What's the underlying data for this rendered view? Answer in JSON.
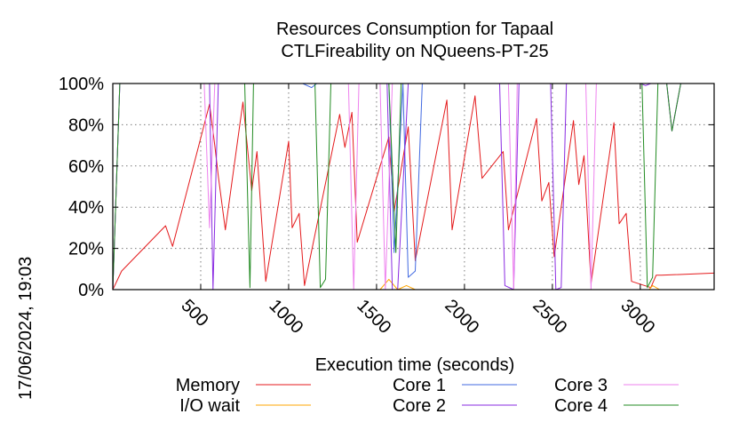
{
  "chart_data": {
    "type": "line",
    "title": [
      "Resources Consumption for Tapaal",
      "CTLFireability on NQueens-PT-25"
    ],
    "xlabel": "Execution time (seconds)",
    "ylabel": "",
    "side_label": "17/06/2024, 19:03",
    "xlim": [
      0,
      3420
    ],
    "ylim": [
      0,
      100
    ],
    "x_ticks": [
      500,
      1000,
      1500,
      2000,
      2500,
      3000
    ],
    "y_ticks": [
      {
        "value": 0,
        "label": "0%"
      },
      {
        "value": 20,
        "label": "20%"
      },
      {
        "value": 40,
        "label": "40%"
      },
      {
        "value": 60,
        "label": "60%"
      },
      {
        "value": 80,
        "label": "80%"
      },
      {
        "value": 100,
        "label": "100%"
      }
    ],
    "grid": true,
    "legend_position": "bottom",
    "series": [
      {
        "name": "Memory",
        "color": "#e41a1c",
        "points": [
          [
            0,
            0
          ],
          [
            50,
            9
          ],
          [
            300,
            31
          ],
          [
            340,
            21
          ],
          [
            550,
            90
          ],
          [
            580,
            70
          ],
          [
            600,
            55
          ],
          [
            640,
            29
          ],
          [
            740,
            91
          ],
          [
            790,
            48
          ],
          [
            820,
            67
          ],
          [
            870,
            4
          ],
          [
            1000,
            72
          ],
          [
            1020,
            30
          ],
          [
            1060,
            37
          ],
          [
            1090,
            2
          ],
          [
            1290,
            85
          ],
          [
            1320,
            69
          ],
          [
            1360,
            86
          ],
          [
            1390,
            23
          ],
          [
            1570,
            74
          ],
          [
            1600,
            38
          ],
          [
            1680,
            79
          ],
          [
            1720,
            14
          ],
          [
            1900,
            92
          ],
          [
            1930,
            29
          ],
          [
            2060,
            94
          ],
          [
            2100,
            54
          ],
          [
            2220,
            67
          ],
          [
            2250,
            29
          ],
          [
            2410,
            83
          ],
          [
            2440,
            43
          ],
          [
            2480,
            52
          ],
          [
            2510,
            16
          ],
          [
            2620,
            82
          ],
          [
            2650,
            51
          ],
          [
            2680,
            65
          ],
          [
            2720,
            3
          ],
          [
            2850,
            81
          ],
          [
            2880,
            32
          ],
          [
            2920,
            37
          ],
          [
            2950,
            4
          ],
          [
            3060,
            1
          ],
          [
            3090,
            7
          ],
          [
            3120,
            7
          ],
          [
            3420,
            8
          ]
        ]
      },
      {
        "name": "I/O wait",
        "color": "#ffa500",
        "points": [
          [
            0,
            0
          ],
          [
            1520,
            0
          ],
          [
            1570,
            5
          ],
          [
            1620,
            0
          ],
          [
            1670,
            2
          ],
          [
            1720,
            0
          ],
          [
            3050,
            0
          ],
          [
            3070,
            2
          ],
          [
            3110,
            0
          ],
          [
            3420,
            0
          ]
        ]
      },
      {
        "name": "Core 1",
        "color": "#4169e1",
        "points": [
          [
            0,
            0
          ],
          [
            40,
            100
          ],
          [
            1080,
            100
          ],
          [
            1130,
            98
          ],
          [
            1160,
            100
          ],
          [
            1570,
            100
          ],
          [
            1600,
            18
          ],
          [
            1620,
            50
          ],
          [
            1650,
            100
          ],
          [
            1680,
            6
          ],
          [
            1720,
            9
          ],
          [
            1760,
            100
          ],
          [
            3150,
            100
          ],
          [
            3180,
            77
          ],
          [
            3230,
            100
          ],
          [
            3420,
            100
          ]
        ]
      },
      {
        "name": "Core 2",
        "color": "#8a2be2",
        "points": [
          [
            0,
            0
          ],
          [
            40,
            100
          ],
          [
            550,
            100
          ],
          [
            570,
            0
          ],
          [
            600,
            100
          ],
          [
            1560,
            100
          ],
          [
            1590,
            0
          ],
          [
            1620,
            0
          ],
          [
            1680,
            100
          ],
          [
            2200,
            100
          ],
          [
            2230,
            2
          ],
          [
            2280,
            0
          ],
          [
            2310,
            100
          ],
          [
            2490,
            100
          ],
          [
            2520,
            0
          ],
          [
            2550,
            1
          ],
          [
            2580,
            100
          ],
          [
            3000,
            100
          ],
          [
            3030,
            99
          ],
          [
            3060,
            100
          ],
          [
            3150,
            100
          ],
          [
            3180,
            77
          ],
          [
            3230,
            100
          ],
          [
            3420,
            100
          ]
        ]
      },
      {
        "name": "Core 3",
        "color": "#ee82ee",
        "points": [
          [
            0,
            0
          ],
          [
            40,
            100
          ],
          [
            520,
            100
          ],
          [
            550,
            30
          ],
          [
            580,
            100
          ],
          [
            1340,
            100
          ],
          [
            1370,
            0
          ],
          [
            1400,
            100
          ],
          [
            1520,
            100
          ],
          [
            1550,
            0
          ],
          [
            1590,
            100
          ],
          [
            2250,
            100
          ],
          [
            2280,
            0
          ],
          [
            2300,
            100
          ],
          [
            2690,
            100
          ],
          [
            2720,
            0
          ],
          [
            2750,
            100
          ],
          [
            3150,
            100
          ],
          [
            3180,
            77
          ],
          [
            3230,
            100
          ],
          [
            3420,
            100
          ]
        ]
      },
      {
        "name": "Core 4",
        "color": "#228b22",
        "points": [
          [
            0,
            0
          ],
          [
            40,
            100
          ],
          [
            750,
            100
          ],
          [
            780,
            1
          ],
          [
            800,
            100
          ],
          [
            1150,
            100
          ],
          [
            1180,
            1
          ],
          [
            1210,
            5
          ],
          [
            1240,
            100
          ],
          [
            1570,
            100
          ],
          [
            1610,
            18
          ],
          [
            1640,
            100
          ],
          [
            3010,
            100
          ],
          [
            3040,
            1
          ],
          [
            3070,
            6
          ],
          [
            3100,
            100
          ],
          [
            3150,
            100
          ],
          [
            3180,
            77
          ],
          [
            3230,
            100
          ],
          [
            3420,
            100
          ]
        ]
      }
    ]
  }
}
